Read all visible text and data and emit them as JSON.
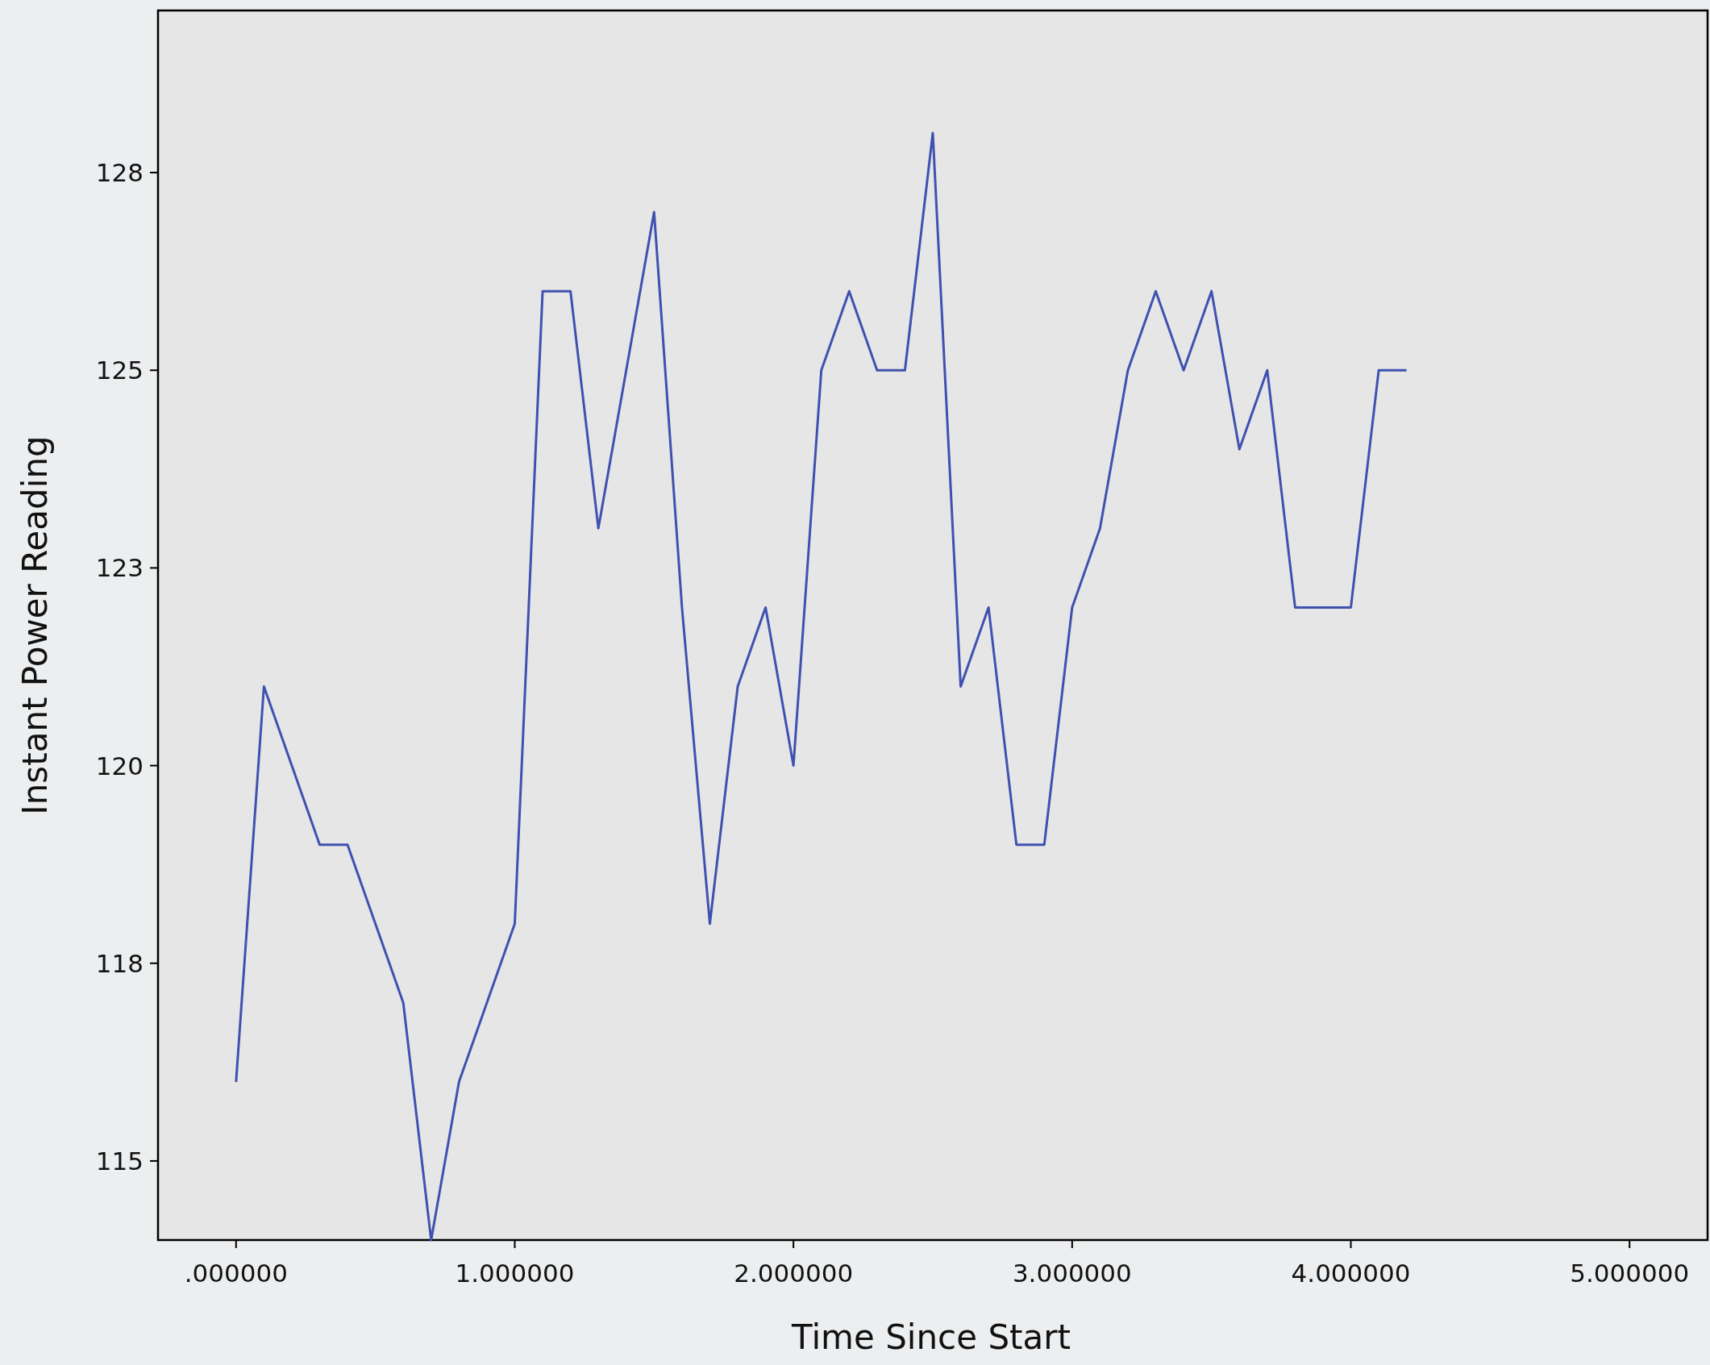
{
  "chart_data": {
    "type": "line",
    "xlabel": "Time Since Start",
    "ylabel": "Instant Power Reading",
    "x": [
      0,
      0.1,
      0.2,
      0.3,
      0.4,
      0.5,
      0.6,
      0.7,
      0.8,
      0.9,
      1.0,
      1.1,
      1.2,
      1.3,
      1.4,
      1.5,
      1.6,
      1.7,
      1.8,
      1.9,
      2.0,
      2.1,
      2.2,
      2.3,
      2.4,
      2.5,
      2.6,
      2.7,
      2.8,
      2.9,
      3.0,
      3.1,
      3.2,
      3.3,
      3.4,
      3.5,
      3.6,
      3.7,
      3.8,
      3.9,
      4.0,
      4.1,
      4.2
    ],
    "series": [
      {
        "color": "#3f51b0",
        "values": [
          116,
          121,
          120,
          119,
          119,
          118,
          117,
          114,
          116,
          117,
          118,
          126,
          126,
          123,
          125,
          127,
          122,
          118,
          121,
          122,
          120,
          125,
          126,
          125,
          125,
          128,
          121,
          122,
          119,
          119,
          122,
          123,
          125,
          126,
          125,
          126,
          124,
          125,
          122,
          122,
          122,
          125,
          125
        ]
      }
    ],
    "xlim": [
      -0.28,
      5.28
    ],
    "ylim": [
      114,
      129.55
    ],
    "xticks": [
      {
        "value": 0,
        "label": ".000000"
      },
      {
        "value": 1,
        "label": "1.000000"
      },
      {
        "value": 2,
        "label": "2.000000"
      },
      {
        "value": 3,
        "label": "3.000000"
      },
      {
        "value": 4,
        "label": "4.000000"
      },
      {
        "value": 5,
        "label": "5.000000"
      }
    ],
    "yticks": [
      115,
      {
        "value": 117.5,
        "label": "118"
      },
      120,
      {
        "value": 122.5,
        "label": "123"
      },
      125,
      {
        "value": 127.5,
        "label": "128"
      }
    ],
    "grid": false,
    "marker": "none",
    "line_style": "solid"
  }
}
